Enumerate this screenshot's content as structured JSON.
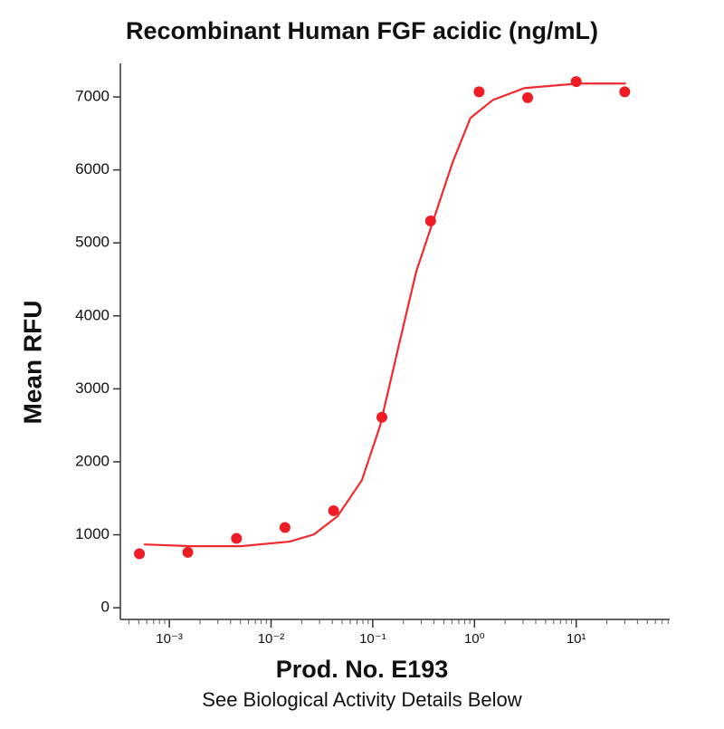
{
  "chart_data": {
    "type": "scatter",
    "title": "Recombinant Human FGF acidic (ng/mL)",
    "x_label": "Prod. No. E193",
    "subtitle": "See Biological Activity Details Below",
    "y_label": "Mean RFU",
    "x_scale": "log",
    "xlim": [
      0.00033,
      83
    ],
    "ylim": [
      -160,
      7460
    ],
    "yticks": [
      0,
      1000,
      2000,
      3000,
      4000,
      5000,
      6000,
      7000
    ],
    "xticks": [
      {
        "value": 0.001,
        "label": "10⁻³"
      },
      {
        "value": 0.01,
        "label": "10⁻²"
      },
      {
        "value": 0.1,
        "label": "10⁻¹"
      },
      {
        "value": 1,
        "label": "10⁰"
      },
      {
        "value": 10,
        "label": "10¹"
      }
    ],
    "xticks_minor": [
      0.0004,
      0.0005,
      0.0006,
      0.0007,
      0.0008,
      0.0009,
      0.002,
      0.003,
      0.004,
      0.005,
      0.006,
      0.007,
      0.008,
      0.009,
      0.02,
      0.03,
      0.04,
      0.05,
      0.06,
      0.07,
      0.08,
      0.09,
      0.2,
      0.3,
      0.4,
      0.5,
      0.6,
      0.7,
      0.8,
      0.9,
      2,
      3,
      4,
      5,
      6,
      7,
      8,
      9,
      20,
      30,
      40,
      50,
      60,
      70,
      80
    ],
    "series": [
      {
        "type": "scatter",
        "color": "#ee1c25",
        "x": [
          0.000508,
          0.00152,
          0.00457,
          0.0137,
          0.0412,
          0.123,
          0.37,
          1.11,
          3.33,
          10,
          30
        ],
        "values": [
          740,
          760,
          950,
          1100,
          1330,
          2610,
          5300,
          7070,
          6990,
          7210,
          7070
        ]
      },
      {
        "type": "line",
        "color": "#ee2a30",
        "x": [
          0.000564,
          0.00167,
          0.00504,
          0.0152,
          0.0264,
          0.045,
          0.0782,
          0.118,
          0.177,
          0.267,
          0.402,
          0.605,
          0.912,
          1.52,
          3.11,
          10.6,
          30.8
        ],
        "values": [
          868,
          844,
          844,
          906,
          1005,
          1253,
          1749,
          2494,
          3548,
          4603,
          5347,
          6092,
          6712,
          6960,
          7122,
          7184,
          7184
        ]
      }
    ]
  }
}
